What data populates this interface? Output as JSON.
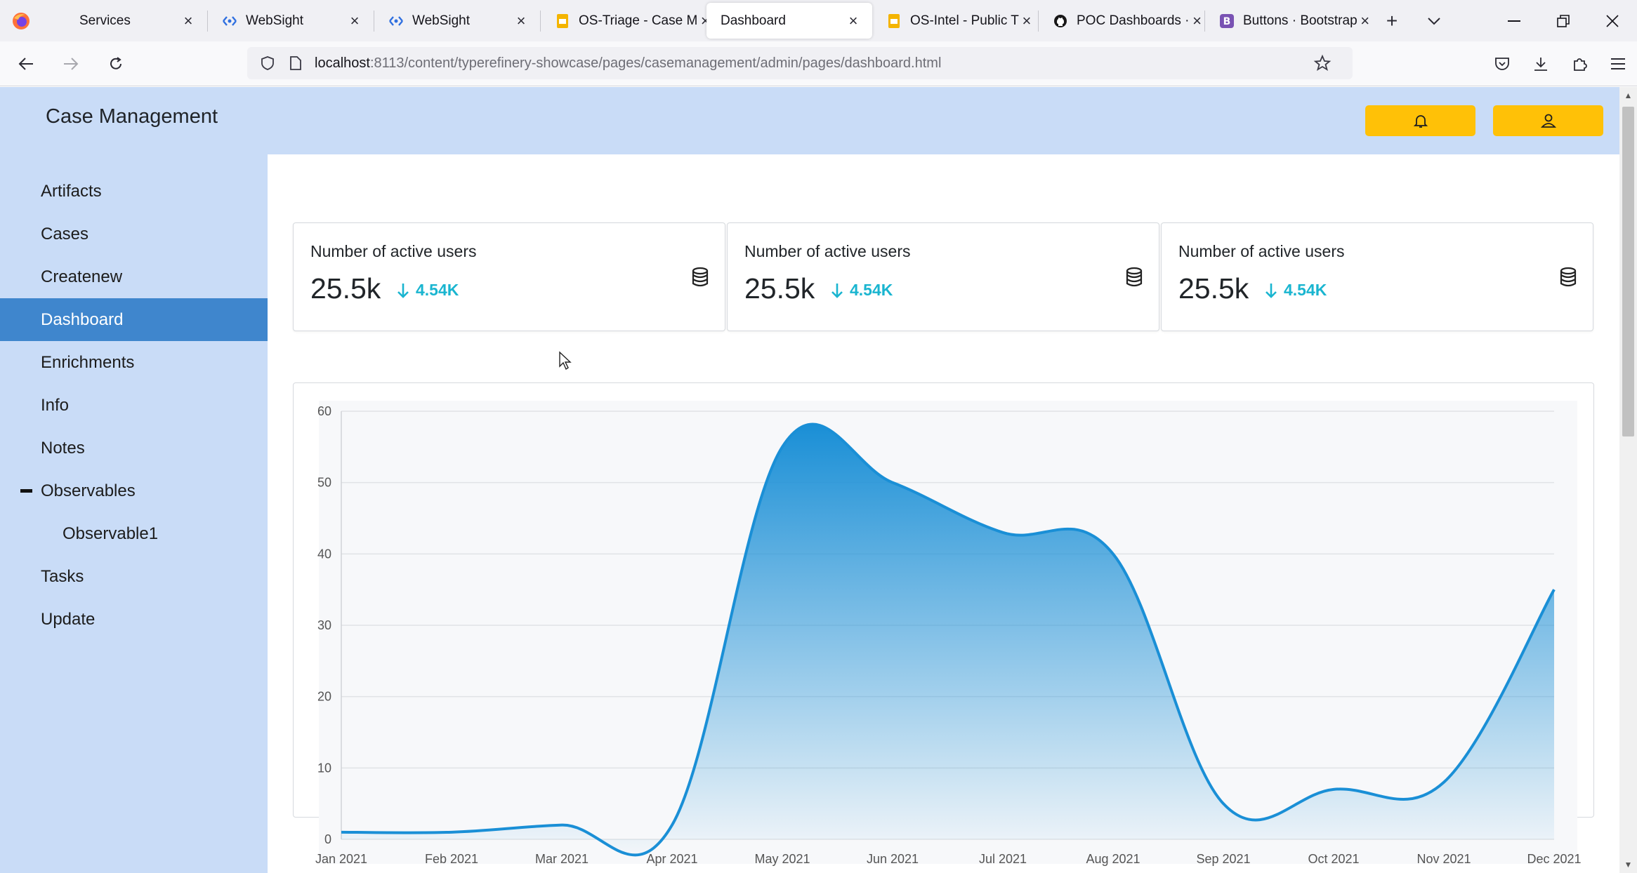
{
  "browser": {
    "tabs": [
      {
        "title": "Services",
        "icon": "firefox-services-icon",
        "close": "×"
      },
      {
        "title": "WebSight",
        "icon": "websight-icon",
        "close": "×"
      },
      {
        "title": "WebSight",
        "icon": "websight-icon",
        "close": "×"
      },
      {
        "title": "OS-Triage - Case M",
        "icon": "slides-icon",
        "close": "×"
      },
      {
        "title": "Dashboard",
        "icon": "",
        "close": "×",
        "active": true
      },
      {
        "title": "OS-Intel - Public T",
        "icon": "slides-icon",
        "close": "×"
      },
      {
        "title": "POC Dashboards ·",
        "icon": "github-icon",
        "close": "×"
      },
      {
        "title": "Buttons · Bootstrap",
        "icon": "bootstrap-icon",
        "close": "×"
      }
    ],
    "new_tab": "+",
    "tab_list": "⌄",
    "window": {
      "minimize": "—",
      "restore": "❐",
      "close": "✕"
    },
    "url_host": "localhost",
    "url_path": ":8113/content/typerefinery-showcase/pages/casemanagement/admin/pages/dashboard.html"
  },
  "app": {
    "title": "Case Management",
    "accent_color": "#ffc107",
    "sidebar_active_color": "#3f86cd",
    "sidebar": [
      {
        "label": "Artifacts"
      },
      {
        "label": "Cases"
      },
      {
        "label": "Createnew"
      },
      {
        "label": "Dashboard",
        "active": true
      },
      {
        "label": "Enrichments"
      },
      {
        "label": "Info"
      },
      {
        "label": "Notes"
      },
      {
        "label": "Observables",
        "expanded": true
      },
      {
        "label": "Observable1",
        "sub": true
      },
      {
        "label": "Tasks"
      },
      {
        "label": "Update"
      }
    ]
  },
  "stats": [
    {
      "label": "Number of active users",
      "value": "25.5k",
      "delta": "4.54K",
      "icon": "database-icon"
    },
    {
      "label": "Number of active users",
      "value": "25.5k",
      "delta": "4.54K",
      "icon": "database-icon"
    },
    {
      "label": "Number of active users",
      "value": "25.5k",
      "delta": "4.54K",
      "icon": "database-icon"
    }
  ],
  "chart_data": {
    "type": "area",
    "title": "",
    "xlabel": "",
    "ylabel": "",
    "categories": [
      "Jan 2021",
      "Feb 2021",
      "Mar 2021",
      "Apr 2021",
      "May 2021",
      "Jun 2021",
      "Jul 2021",
      "Aug 2021",
      "Sep 2021",
      "Oct 2021",
      "Nov 2021",
      "Dec 2021"
    ],
    "series": [
      {
        "values": [
          1,
          1,
          2,
          2,
          55,
          50,
          43,
          40,
          5,
          7,
          8,
          35
        ],
        "color": "#1a8fd6"
      }
    ],
    "ylim": [
      0,
      60
    ],
    "yticks": [
      0,
      10,
      20,
      30,
      40,
      50,
      60
    ],
    "grid": true
  }
}
